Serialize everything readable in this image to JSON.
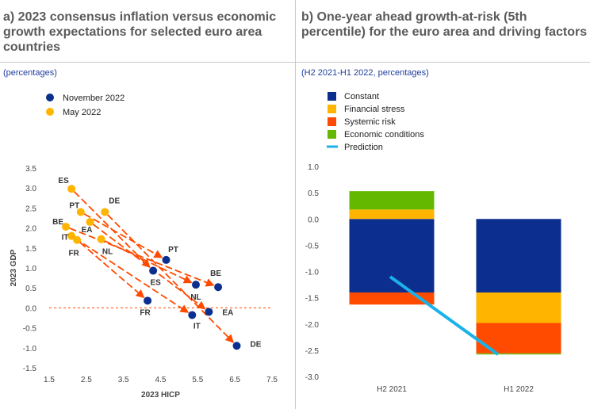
{
  "panel_a": {
    "title": "a) 2023 consensus inflation versus economic growth expectations for selected euro area countries",
    "subtitle": "(percentages)"
  },
  "panel_b": {
    "title": "b) One-year ahead growth-at-risk (5th percentile) for the euro area and driving factors",
    "subtitle": "(H2 2021-H1 2022, percentages)"
  },
  "colors": {
    "navy": "#0c2f8f",
    "yellow": "#ffb400",
    "orange": "#ff4b00",
    "green": "#65b800",
    "cyan": "#1ab2e8",
    "arrow": "#ff4b00"
  },
  "chart_data": [
    {
      "type": "scatter",
      "xlabel": "2023 HICP",
      "ylabel": "2023 GDP",
      "xlim": [
        1.5,
        7.5
      ],
      "ylim": [
        -1.5,
        3.5
      ],
      "xticks": [
        "1.5",
        "2.5",
        "3.5",
        "4.5",
        "5.5",
        "6.5",
        "7.5"
      ],
      "yticks": [
        "3.5",
        "3.0",
        "2.5",
        "2.0",
        "1.5",
        "1.0",
        "0.5",
        "0.0",
        "-0.5",
        "-1.0",
        "-1.5"
      ],
      "reference_line_y": 0,
      "legend": {
        "placement": "top-left",
        "entries": [
          "November 2022",
          "May 2022"
        ]
      },
      "points": [
        {
          "label": "ES",
          "may": [
            2.1,
            2.98
          ],
          "nov": [
            4.3,
            0.93
          ]
        },
        {
          "label": "DE",
          "may": [
            3.0,
            2.4
          ],
          "nov": [
            6.55,
            -0.95
          ]
        },
        {
          "label": "PT",
          "may": [
            2.35,
            2.4
          ],
          "nov": [
            4.65,
            1.2
          ]
        },
        {
          "label": "EA",
          "may": [
            2.6,
            2.15
          ],
          "nov": [
            5.8,
            -0.1
          ]
        },
        {
          "label": "BE",
          "may": [
            1.95,
            2.03
          ],
          "nov": [
            6.05,
            0.52
          ]
        },
        {
          "label": "NL",
          "may": [
            2.9,
            1.72
          ],
          "nov": [
            5.45,
            0.58
          ]
        },
        {
          "label": "IT",
          "may": [
            2.1,
            1.8
          ],
          "nov": [
            5.35,
            -0.18
          ]
        },
        {
          "label": "FR",
          "may": [
            2.25,
            1.7
          ],
          "nov": [
            4.15,
            0.18
          ]
        }
      ]
    },
    {
      "type": "bar",
      "stacked": true,
      "categories": [
        "H2 2021",
        "H1 2022"
      ],
      "ylim": [
        -3.0,
        1.0
      ],
      "yticks": [
        "1.0",
        "0.5",
        "0.0",
        "-0.5",
        "-1.0",
        "-1.5",
        "-2.0",
        "-2.5",
        "-3.0"
      ],
      "legend": {
        "placement": "top-left"
      },
      "series": [
        {
          "name": "Constant",
          "values": [
            -1.4,
            -1.4
          ]
        },
        {
          "name": "Financial stress",
          "values": [
            0.18,
            -0.58
          ]
        },
        {
          "name": "Systemic risk",
          "values": [
            -0.23,
            -0.58
          ]
        },
        {
          "name": "Economic conditions",
          "values": [
            0.35,
            -0.02
          ]
        }
      ],
      "prediction": {
        "name": "Prediction",
        "values": [
          -1.1,
          -2.58
        ]
      }
    }
  ]
}
